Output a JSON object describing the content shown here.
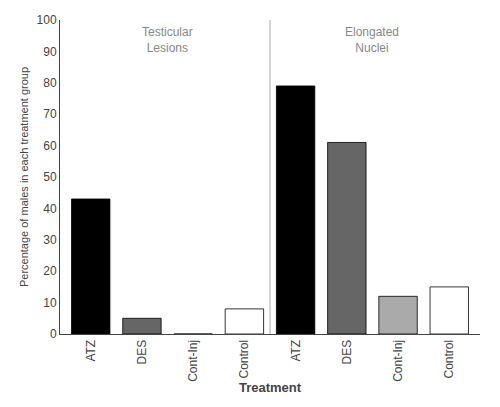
{
  "chart_data": {
    "type": "bar",
    "categories": [
      "ATZ",
      "DES",
      "Cont-Inj",
      "Control",
      "ATZ",
      "DES",
      "Cont-Inj",
      "Control"
    ],
    "values": [
      43,
      5,
      0,
      8,
      79,
      61,
      12,
      15
    ],
    "colors": [
      "#000000",
      "#666666",
      "#aaaaaa",
      "#ffffff",
      "#000000",
      "#666666",
      "#aaaaaa",
      "#ffffff"
    ],
    "xlabel": "Treatment",
    "ylabel": "Percentage of males in each treatment group",
    "annotations": [
      "Testicular\nLesions",
      "Elongated\nNuclei"
    ],
    "ylim": [
      0,
      100
    ],
    "yticks": [
      0,
      10,
      20,
      30,
      40,
      50,
      60,
      70,
      80,
      90,
      100
    ],
    "grid": false
  }
}
